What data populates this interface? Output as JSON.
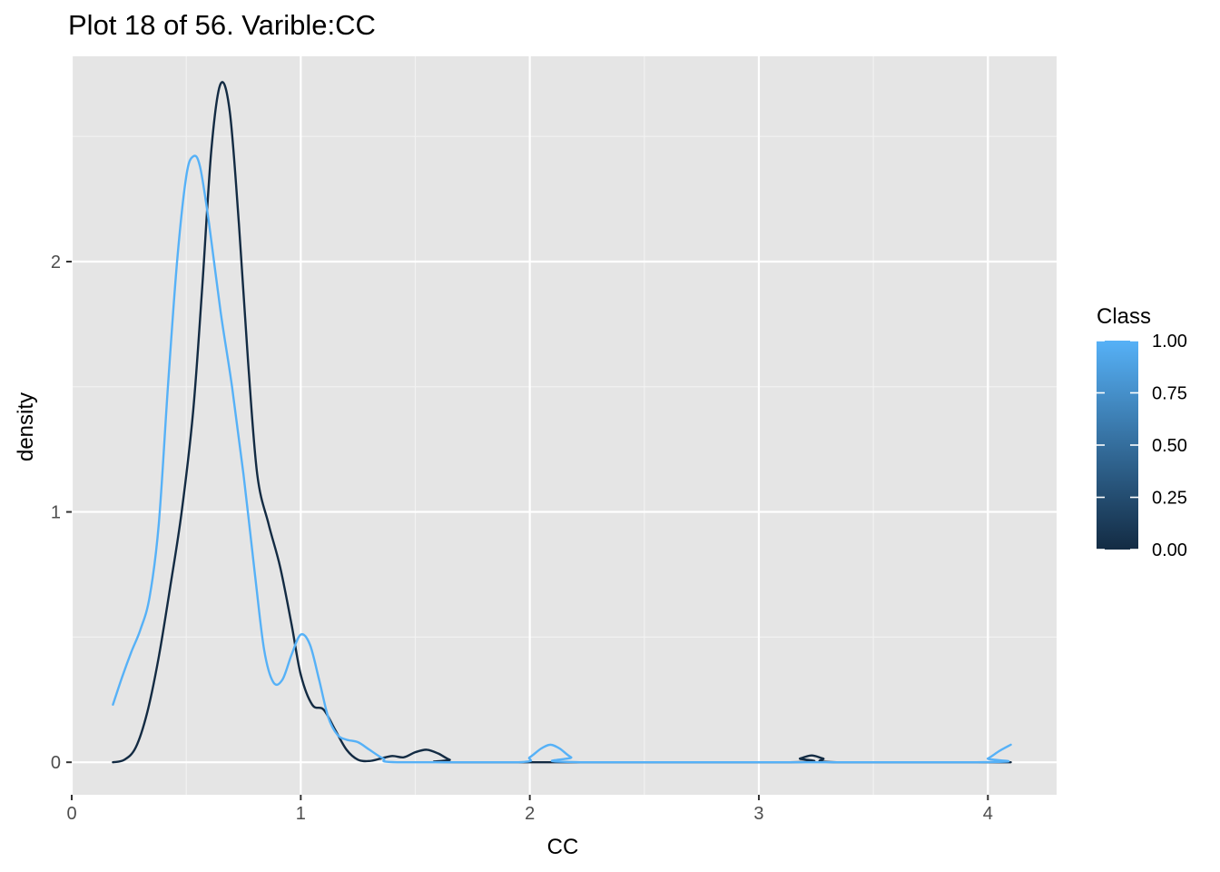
{
  "chart_data": {
    "type": "line",
    "title": "Plot 18 of 56. Varible:CC",
    "xlabel": "CC",
    "ylabel": "density",
    "xlim": [
      0,
      4.3
    ],
    "ylim": [
      -0.13,
      2.82
    ],
    "x_ticks": [
      0,
      1,
      2,
      3,
      4
    ],
    "x_tick_labels": [
      "0",
      "1",
      "2",
      "3",
      "4"
    ],
    "y_ticks": [
      0,
      1,
      2
    ],
    "y_tick_labels": [
      "0",
      "1",
      "2"
    ],
    "grid": true,
    "panel_background": "#e5e5e5",
    "legend": {
      "title": "Class",
      "position": "right",
      "type": "colorbar",
      "low_color": "#132b43",
      "high_color": "#56b1f7",
      "ticks": [
        0,
        0.25,
        0.5,
        0.75,
        1.0
      ],
      "tick_labels": [
        "0.00",
        "0.25",
        "0.50",
        "0.75",
        "1.00"
      ]
    },
    "series": [
      {
        "class_value": 0,
        "color": "#132b43",
        "points": [
          [
            0.18,
            0.0
          ],
          [
            0.23,
            0.01
          ],
          [
            0.28,
            0.06
          ],
          [
            0.33,
            0.2
          ],
          [
            0.38,
            0.42
          ],
          [
            0.43,
            0.7
          ],
          [
            0.48,
            1.0
          ],
          [
            0.53,
            1.4
          ],
          [
            0.57,
            1.9
          ],
          [
            0.61,
            2.45
          ],
          [
            0.65,
            2.71
          ],
          [
            0.69,
            2.6
          ],
          [
            0.73,
            2.15
          ],
          [
            0.77,
            1.6
          ],
          [
            0.81,
            1.15
          ],
          [
            0.86,
            0.95
          ],
          [
            0.91,
            0.78
          ],
          [
            0.96,
            0.55
          ],
          [
            1.0,
            0.35
          ],
          [
            1.05,
            0.23
          ],
          [
            1.1,
            0.21
          ],
          [
            1.15,
            0.13
          ],
          [
            1.2,
            0.05
          ],
          [
            1.25,
            0.01
          ],
          [
            1.3,
            0.005
          ],
          [
            1.35,
            0.015
          ],
          [
            1.4,
            0.025
          ],
          [
            1.45,
            0.02
          ],
          [
            1.5,
            0.04
          ],
          [
            1.55,
            0.05
          ],
          [
            1.6,
            0.035
          ],
          [
            1.65,
            0.01
          ],
          [
            1.7,
            0.0
          ],
          [
            3.12,
            0.0
          ],
          [
            3.18,
            0.015
          ],
          [
            3.23,
            0.027
          ],
          [
            3.28,
            0.015
          ],
          [
            3.34,
            0.0
          ],
          [
            4.1,
            0.0
          ]
        ]
      },
      {
        "class_value": 1,
        "color": "#56b1f7",
        "points": [
          [
            0.18,
            0.23
          ],
          [
            0.22,
            0.34
          ],
          [
            0.26,
            0.44
          ],
          [
            0.3,
            0.53
          ],
          [
            0.34,
            0.66
          ],
          [
            0.38,
            0.95
          ],
          [
            0.42,
            1.5
          ],
          [
            0.46,
            2.0
          ],
          [
            0.5,
            2.34
          ],
          [
            0.53,
            2.42
          ],
          [
            0.56,
            2.38
          ],
          [
            0.6,
            2.15
          ],
          [
            0.65,
            1.8
          ],
          [
            0.7,
            1.5
          ],
          [
            0.75,
            1.15
          ],
          [
            0.8,
            0.75
          ],
          [
            0.84,
            0.45
          ],
          [
            0.88,
            0.32
          ],
          [
            0.92,
            0.33
          ],
          [
            0.96,
            0.43
          ],
          [
            1.0,
            0.51
          ],
          [
            1.04,
            0.47
          ],
          [
            1.08,
            0.33
          ],
          [
            1.12,
            0.18
          ],
          [
            1.16,
            0.11
          ],
          [
            1.2,
            0.09
          ],
          [
            1.25,
            0.08
          ],
          [
            1.3,
            0.05
          ],
          [
            1.36,
            0.015
          ],
          [
            1.42,
            0.0
          ],
          [
            1.95,
            0.0
          ],
          [
            2.0,
            0.02
          ],
          [
            2.05,
            0.055
          ],
          [
            2.09,
            0.07
          ],
          [
            2.13,
            0.055
          ],
          [
            2.18,
            0.02
          ],
          [
            2.24,
            0.0
          ],
          [
            3.95,
            0.0
          ],
          [
            4.0,
            0.015
          ],
          [
            4.05,
            0.045
          ],
          [
            4.1,
            0.07
          ]
        ]
      }
    ]
  }
}
